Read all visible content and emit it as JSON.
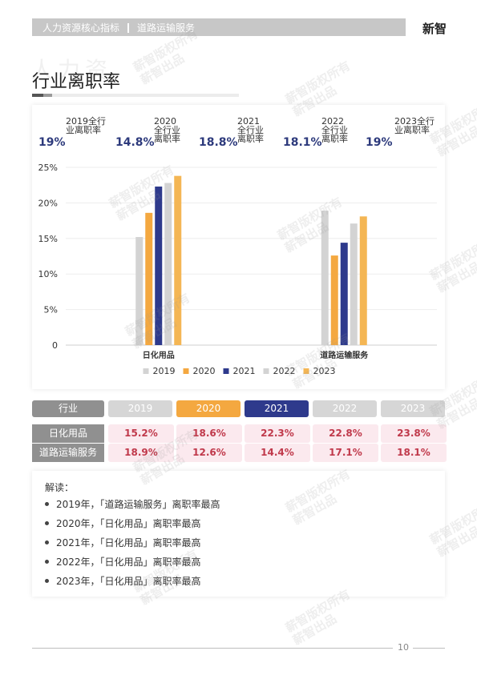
{
  "header": {
    "section": "人力资源核心指标",
    "industry": "道路运输服务",
    "brand": "新智"
  },
  "title_ghost": "人力资",
  "page_title": "行业离职率",
  "kpis": [
    {
      "value": "19%",
      "label": "2019全行业离职率"
    },
    {
      "value": "14.8%",
      "label": "2020全行业离职率"
    },
    {
      "value": "18.8%",
      "label": "2021全行业离职率"
    },
    {
      "value": "18.1%",
      "label": "2022全行业离职率"
    },
    {
      "value": "19%",
      "label": "2023全行业离职率"
    }
  ],
  "chart_data": {
    "type": "bar",
    "categories": [
      "日化用品",
      "道路运输服务"
    ],
    "series": [
      {
        "name": "2019",
        "values": [
          15.2,
          18.9
        ]
      },
      {
        "name": "2020",
        "values": [
          18.6,
          12.6
        ]
      },
      {
        "name": "2021",
        "values": [
          22.3,
          14.4
        ]
      },
      {
        "name": "2022",
        "values": [
          22.8,
          17.1
        ]
      },
      {
        "name": "2023",
        "values": [
          23.8,
          18.1
        ]
      }
    ],
    "y_ticks": [
      "25%",
      "20%",
      "15%",
      "10%",
      "5%",
      "0"
    ],
    "ylim": [
      0,
      25
    ],
    "grid": true,
    "legend_position": "bottom",
    "colors": [
      "#d3d3d3",
      "#f4a840",
      "#2e3a8c",
      "#d3d3d3",
      "#f4b654"
    ]
  },
  "table": {
    "header": [
      "行业",
      "2019",
      "2020",
      "2021",
      "2022",
      "2023"
    ],
    "rows": [
      {
        "label": "日化用品",
        "values": [
          "15.2%",
          "18.6%",
          "22.3%",
          "22.8%",
          "23.8%"
        ]
      },
      {
        "label": "道路运输服务",
        "values": [
          "18.9%",
          "12.6%",
          "14.4%",
          "17.1%",
          "18.1%"
        ]
      }
    ]
  },
  "notes": {
    "title": "解读：",
    "items": [
      "2019年，「道路运输服务」离职率最高",
      "2020年，「日化用品」离职率最高",
      "2021年，「日化用品」离职率最高",
      "2022年，「日化用品」离职率最高",
      "2023年，「日化用品」离职率最高"
    ]
  },
  "page_number": "10",
  "watermark": "薪智版权所有 薪智出品"
}
